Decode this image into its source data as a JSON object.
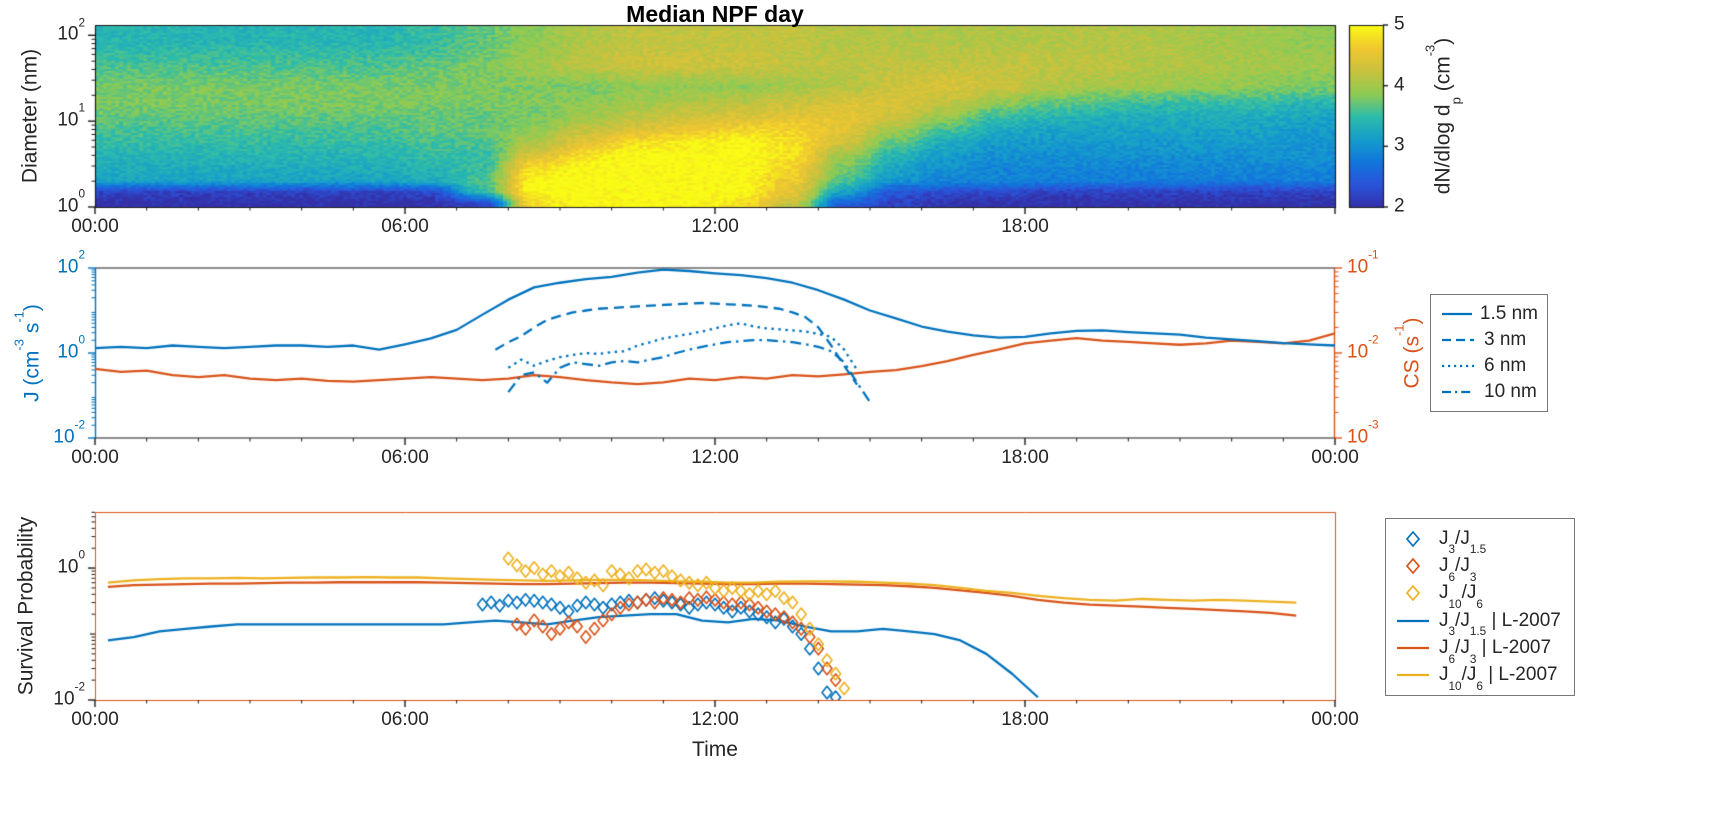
{
  "figure": {
    "title": "Median NPF day",
    "colors": {
      "blue": "#0072BD",
      "orange": "#D95319",
      "yellow": "#EDB120",
      "axis": "#262626"
    }
  },
  "chart_data": [
    {
      "id": "size_distribution_heatmap",
      "type": "heatmap",
      "title": "Median NPF day",
      "ylabel": "Diameter  (nm)",
      "colorbar_label": "dN/dlog d_{p} (cm^{-3})",
      "clim": [
        2,
        5
      ],
      "ylim_log10_nm": [
        0,
        2.12
      ],
      "xlim_hours": [
        0,
        24
      ],
      "xticks": [
        {
          "h": 0,
          "label": "00:00"
        },
        {
          "h": 6,
          "label": "06:00"
        },
        {
          "h": 12,
          "label": "12:00"
        },
        {
          "h": 18,
          "label": "18:00"
        }
      ],
      "yticks": [
        {
          "log10": 0,
          "label": "10^{0}"
        },
        {
          "log10": 1,
          "label": "10^{1}"
        },
        {
          "log10": 2,
          "label": "10^{2}"
        }
      ],
      "colorbar_ticks": [
        {
          "v": 5,
          "label": "5"
        },
        {
          "v": 4,
          "label": "4"
        },
        {
          "v": 3,
          "label": "3"
        },
        {
          "v": 2,
          "label": "2"
        }
      ],
      "colormap": {
        "name": "parula",
        "stops": [
          [
            0.0,
            "#3430a8"
          ],
          [
            0.12,
            "#2a52d8"
          ],
          [
            0.25,
            "#1276dc"
          ],
          [
            0.37,
            "#159ccc"
          ],
          [
            0.5,
            "#2ebcaa"
          ],
          [
            0.62,
            "#8ccb54"
          ],
          [
            0.75,
            "#c9c23e"
          ],
          [
            0.87,
            "#f0c631"
          ],
          [
            1.0,
            "#f9fb15"
          ]
        ]
      },
      "diameters_nm": [
        1.1,
        1.5,
        2,
        2.8,
        4,
        5.6,
        8,
        11,
        16,
        25,
        45,
        85
      ],
      "hour_centers_note": "columns are hourly medians centered at h+0.5, h=0..23",
      "values_log10_dN": [
        [
          2,
          2,
          2,
          2,
          2,
          2,
          2,
          2.2,
          4.8,
          5,
          5,
          5,
          4.8,
          4.2,
          2.5,
          2.2,
          2,
          2,
          2,
          2,
          2,
          2,
          2,
          2
        ],
        [
          2.2,
          2.2,
          2.2,
          2.2,
          2.2,
          2.2,
          2.3,
          3.5,
          5,
          5,
          5,
          5,
          5,
          4.5,
          3.2,
          2.4,
          2.3,
          2.3,
          2.2,
          2.2,
          2.2,
          2.2,
          2.2,
          2.2
        ],
        [
          3.2,
          3.2,
          3.2,
          3.2,
          3.2,
          3.2,
          3.3,
          3.6,
          5,
          5,
          5,
          5,
          5,
          4.6,
          3.6,
          3,
          2.9,
          2.9,
          2.8,
          2.8,
          2.8,
          2.8,
          2.8,
          2.8
        ],
        [
          3.3,
          3.3,
          3.3,
          3.3,
          3.3,
          3.3,
          3.4,
          3.5,
          4.8,
          5,
          5,
          5,
          5,
          4.7,
          3.8,
          3.2,
          3,
          2.9,
          2.9,
          2.9,
          2.9,
          2.9,
          2.9,
          2.9
        ],
        [
          3.4,
          3.4,
          3.4,
          3.4,
          3.4,
          3.4,
          3.5,
          3.5,
          4.4,
          4.8,
          5,
          5,
          5,
          4.8,
          4,
          3.4,
          3.1,
          3,
          3,
          3,
          3,
          3,
          3,
          3
        ],
        [
          3.5,
          3.5,
          3.5,
          3.5,
          3.5,
          3.5,
          3.6,
          3.6,
          4.1,
          4.5,
          4.8,
          4.9,
          5,
          4.8,
          4.3,
          3.7,
          3.3,
          3.1,
          3.1,
          3.1,
          3.1,
          3.1,
          3.1,
          3
        ],
        [
          3.6,
          3.6,
          3.6,
          3.6,
          3.6,
          3.6,
          3.7,
          3.7,
          3.9,
          4.2,
          4.4,
          4.6,
          4.7,
          4.7,
          4.5,
          4,
          3.6,
          3.3,
          3.2,
          3.2,
          3.2,
          3.2,
          3.2,
          3.1
        ],
        [
          3.7,
          3.7,
          3.7,
          3.7,
          3.7,
          3.7,
          3.7,
          3.7,
          3.8,
          4,
          4.2,
          4.3,
          4.4,
          4.5,
          4.5,
          4.3,
          3.9,
          3.5,
          3.4,
          3.3,
          3.3,
          3.3,
          3.3,
          3.2
        ],
        [
          3.8,
          3.8,
          3.8,
          3.8,
          3.8,
          3.8,
          3.8,
          3.8,
          3.8,
          3.9,
          4,
          4.1,
          4.2,
          4.3,
          4.4,
          4.4,
          4.2,
          3.9,
          3.7,
          3.6,
          3.5,
          3.5,
          3.5,
          3.4
        ],
        [
          3.8,
          3.8,
          3.8,
          3.8,
          3.8,
          3.8,
          3.8,
          3.8,
          3.8,
          3.8,
          3.9,
          3.9,
          3.9,
          4,
          4.1,
          4.3,
          4.4,
          4.3,
          4.1,
          4,
          4,
          3.9,
          3.9,
          3.8
        ],
        [
          3.6,
          3.6,
          3.6,
          3.6,
          3.6,
          3.6,
          3.7,
          3.8,
          4,
          4.2,
          4.3,
          4.3,
          4.3,
          4.2,
          4.2,
          4.2,
          4.2,
          4.2,
          4.2,
          4.2,
          4.1,
          4.1,
          4,
          4
        ],
        [
          3.4,
          3.4,
          3.4,
          3.4,
          3.4,
          3.4,
          3.5,
          3.7,
          3.9,
          4.1,
          4.2,
          4.2,
          4.2,
          4.2,
          4.1,
          4.1,
          4.1,
          4.1,
          4.1,
          4.1,
          4.1,
          4,
          4,
          3.9
        ]
      ]
    },
    {
      "id": "formation_rates",
      "type": "line",
      "left_axis": {
        "label": "J (cm^{-3} s^{-1})",
        "lim_log10": [
          -2,
          2
        ],
        "ticks": [
          {
            "log10": 2,
            "label": "10^{2}"
          },
          {
            "log10": 0,
            "label": "10^{0}"
          },
          {
            "log10": -2,
            "label": "10^{-2}"
          }
        ]
      },
      "right_axis": {
        "label": "CS (s^{-1})",
        "lim_log10": [
          -3,
          -1
        ],
        "ticks": [
          {
            "log10": -1,
            "label": "10^{-1}"
          },
          {
            "log10": -2,
            "label": "10^{-2}"
          },
          {
            "log10": -3,
            "label": "10^{-3}"
          }
        ]
      },
      "xticks": [
        {
          "h": 0,
          "label": "00:00"
        },
        {
          "h": 6,
          "label": "06:00"
        },
        {
          "h": 12,
          "label": "12:00"
        },
        {
          "h": 18,
          "label": "18:00"
        },
        {
          "h": 24,
          "label": "00:00"
        }
      ],
      "left_series": [
        {
          "label": "1.5 nm",
          "style": "solid",
          "t0": 0,
          "dt": 0.5,
          "values": [
            1.3,
            1.4,
            1.3,
            1.5,
            1.4,
            1.3,
            1.4,
            1.5,
            1.5,
            1.4,
            1.5,
            1.2,
            1.6,
            2.2,
            3.5,
            8,
            18,
            35,
            45,
            55,
            62,
            78,
            92,
            85,
            75,
            68,
            58,
            45,
            30,
            18,
            10,
            6.5,
            4.2,
            3.2,
            2.6,
            2.3,
            2.4,
            2.9,
            3.3,
            3.4,
            3.1,
            2.9,
            2.7,
            2.3,
            2.1,
            1.9,
            1.7,
            1.6,
            1.5
          ]
        },
        {
          "label": "3 nm",
          "style": "dashed",
          "t0": 7.75,
          "dt": 0.25,
          "values": [
            1.2,
            1.8,
            2.5,
            4,
            6,
            7.5,
            9,
            10,
            11,
            11.5,
            12,
            12.5,
            13,
            13.5,
            14,
            14.5,
            15,
            14.5,
            14,
            13.5,
            13,
            12,
            11,
            9,
            7,
            4,
            1.5,
            0.5,
            0.18
          ]
        },
        {
          "label": "6 nm",
          "style": "dotted",
          "t0": 8,
          "dt": 0.25,
          "values": [
            0.45,
            0.7,
            0.5,
            0.65,
            0.8,
            0.9,
            1.0,
            0.95,
            1.05,
            1.1,
            1.5,
            1.8,
            2.2,
            2.5,
            2.8,
            3.2,
            3.8,
            4.5,
            5,
            4.2,
            3.8,
            3.6,
            3.4,
            3.2,
            2.8,
            2.4,
            1.2,
            0.4
          ]
        },
        {
          "label": "10 nm",
          "style": "dashdot",
          "t0": 8,
          "dt": 0.25,
          "values": [
            0.12,
            0.3,
            0.35,
            0.2,
            0.45,
            0.6,
            0.55,
            0.5,
            0.6,
            0.65,
            0.6,
            0.7,
            0.8,
            1.0,
            1.2,
            1.4,
            1.6,
            1.8,
            1.9,
            2.0,
            2.0,
            1.9,
            1.8,
            1.6,
            1.4,
            1.1,
            0.6,
            0.2,
            0.07
          ]
        }
      ],
      "right_series": {
        "label": "CS",
        "style": "solid",
        "t0": 0,
        "dt": 0.5,
        "values": [
          0.0065,
          0.006,
          0.0062,
          0.0055,
          0.0052,
          0.0055,
          0.005,
          0.0048,
          0.005,
          0.0047,
          0.0046,
          0.0048,
          0.005,
          0.0052,
          0.005,
          0.0048,
          0.005,
          0.0055,
          0.0052,
          0.0048,
          0.0045,
          0.0043,
          0.0045,
          0.005,
          0.0048,
          0.0052,
          0.005,
          0.0055,
          0.0053,
          0.0056,
          0.006,
          0.0063,
          0.007,
          0.008,
          0.0095,
          0.011,
          0.013,
          0.014,
          0.015,
          0.014,
          0.0135,
          0.013,
          0.0125,
          0.013,
          0.014,
          0.0135,
          0.013,
          0.014,
          0.017
        ]
      },
      "legend": [
        {
          "label": "1.5 nm",
          "style": "solid"
        },
        {
          "label": "3 nm",
          "style": "dashed"
        },
        {
          "label": "6 nm",
          "style": "dotted"
        },
        {
          "label": "10 nm",
          "style": "dashdot"
        }
      ]
    },
    {
      "id": "survival_probability",
      "type": "scatter",
      "ylabel": "Survival Probability",
      "xlabel": "Time",
      "ylim_log10": [
        -2,
        0.85
      ],
      "yticks": [
        {
          "log10": 0,
          "label": "10^{0}"
        },
        {
          "log10": -2,
          "label": "10^{-2}"
        }
      ],
      "xticks": [
        {
          "h": 0,
          "label": "00:00"
        },
        {
          "h": 6,
          "label": "06:00"
        },
        {
          "h": 12,
          "label": "12:00"
        },
        {
          "h": 18,
          "label": "18:00"
        },
        {
          "h": 24,
          "label": "00:00"
        }
      ],
      "marker_series": [
        {
          "label": "J_{3}/J_{1.5}",
          "color": "blue",
          "marker": "diamond",
          "t0": 7.5,
          "dt": 0.1667,
          "values": [
            0.28,
            0.3,
            0.27,
            0.32,
            0.3,
            0.33,
            0.32,
            0.3,
            0.28,
            0.25,
            0.22,
            0.27,
            0.3,
            0.28,
            0.25,
            0.28,
            0.3,
            0.32,
            0.3,
            0.33,
            0.35,
            0.32,
            0.3,
            0.28,
            0.25,
            0.28,
            0.3,
            0.28,
            0.25,
            0.22,
            0.25,
            0.22,
            0.2,
            0.18,
            0.15,
            0.17,
            0.13,
            0.1,
            0.06,
            0.03,
            0.013,
            0.011
          ]
        },
        {
          "label": "J_{6}/J_{3}",
          "color": "orange",
          "marker": "diamond",
          "t0": 8.1667,
          "dt": 0.1667,
          "values": [
            0.14,
            0.12,
            0.16,
            0.13,
            0.1,
            0.12,
            0.15,
            0.13,
            0.09,
            0.12,
            0.16,
            0.2,
            0.25,
            0.28,
            0.3,
            0.33,
            0.3,
            0.35,
            0.33,
            0.3,
            0.35,
            0.33,
            0.36,
            0.33,
            0.3,
            0.28,
            0.3,
            0.28,
            0.25,
            0.22,
            0.2,
            0.18,
            0.15,
            0.12,
            0.09,
            0.06,
            0.03,
            0.02
          ]
        },
        {
          "label": "J_{10}/J_{6}",
          "color": "yellow",
          "marker": "diamond",
          "t0": 8.0,
          "dt": 0.1667,
          "values": [
            1.4,
            1.1,
            0.9,
            1.0,
            0.8,
            0.9,
            0.75,
            0.85,
            0.7,
            0.6,
            0.65,
            0.55,
            0.9,
            0.8,
            0.7,
            0.9,
            0.95,
            0.85,
            0.9,
            0.75,
            0.65,
            0.6,
            0.55,
            0.6,
            0.5,
            0.45,
            0.5,
            0.45,
            0.4,
            0.45,
            0.4,
            0.45,
            0.35,
            0.3,
            0.2,
            0.12,
            0.07,
            0.04,
            0.025,
            0.015
          ]
        }
      ],
      "line_series": [
        {
          "label": "J_{3}/J_{1.5} | L-2007",
          "color": "blue",
          "t0": 0.25,
          "dt": 0.5,
          "values": [
            0.08,
            0.09,
            0.11,
            0.12,
            0.13,
            0.14,
            0.14,
            0.14,
            0.14,
            0.14,
            0.14,
            0.14,
            0.14,
            0.14,
            0.15,
            0.16,
            0.15,
            0.14,
            0.16,
            0.18,
            0.19,
            0.2,
            0.2,
            0.16,
            0.15,
            0.17,
            0.16,
            0.13,
            0.11,
            0.11,
            0.12,
            0.11,
            0.1,
            0.08,
            0.05,
            0.025,
            0.011
          ]
        },
        {
          "label": "J_{6}/J_{3} | L-2007",
          "color": "orange",
          "t0": 0.25,
          "dt": 0.5,
          "values": [
            0.52,
            0.55,
            0.56,
            0.57,
            0.58,
            0.58,
            0.59,
            0.6,
            0.6,
            0.61,
            0.61,
            0.61,
            0.61,
            0.6,
            0.59,
            0.58,
            0.57,
            0.57,
            0.58,
            0.59,
            0.6,
            0.6,
            0.59,
            0.58,
            0.57,
            0.57,
            0.58,
            0.58,
            0.57,
            0.56,
            0.55,
            0.53,
            0.5,
            0.46,
            0.42,
            0.38,
            0.33,
            0.3,
            0.28,
            0.27,
            0.26,
            0.25,
            0.24,
            0.23,
            0.22,
            0.21,
            0.19
          ]
        },
        {
          "label": "J_{10}/J_{6} | L-2007",
          "color": "yellow",
          "t0": 0.25,
          "dt": 0.5,
          "values": [
            0.6,
            0.65,
            0.68,
            0.7,
            0.7,
            0.71,
            0.7,
            0.71,
            0.72,
            0.72,
            0.73,
            0.72,
            0.72,
            0.7,
            0.68,
            0.66,
            0.65,
            0.64,
            0.65,
            0.66,
            0.66,
            0.65,
            0.63,
            0.62,
            0.6,
            0.6,
            0.62,
            0.63,
            0.63,
            0.62,
            0.6,
            0.58,
            0.55,
            0.5,
            0.45,
            0.42,
            0.38,
            0.35,
            0.33,
            0.32,
            0.34,
            0.33,
            0.32,
            0.33,
            0.32,
            0.31,
            0.3
          ]
        }
      ]
    }
  ]
}
